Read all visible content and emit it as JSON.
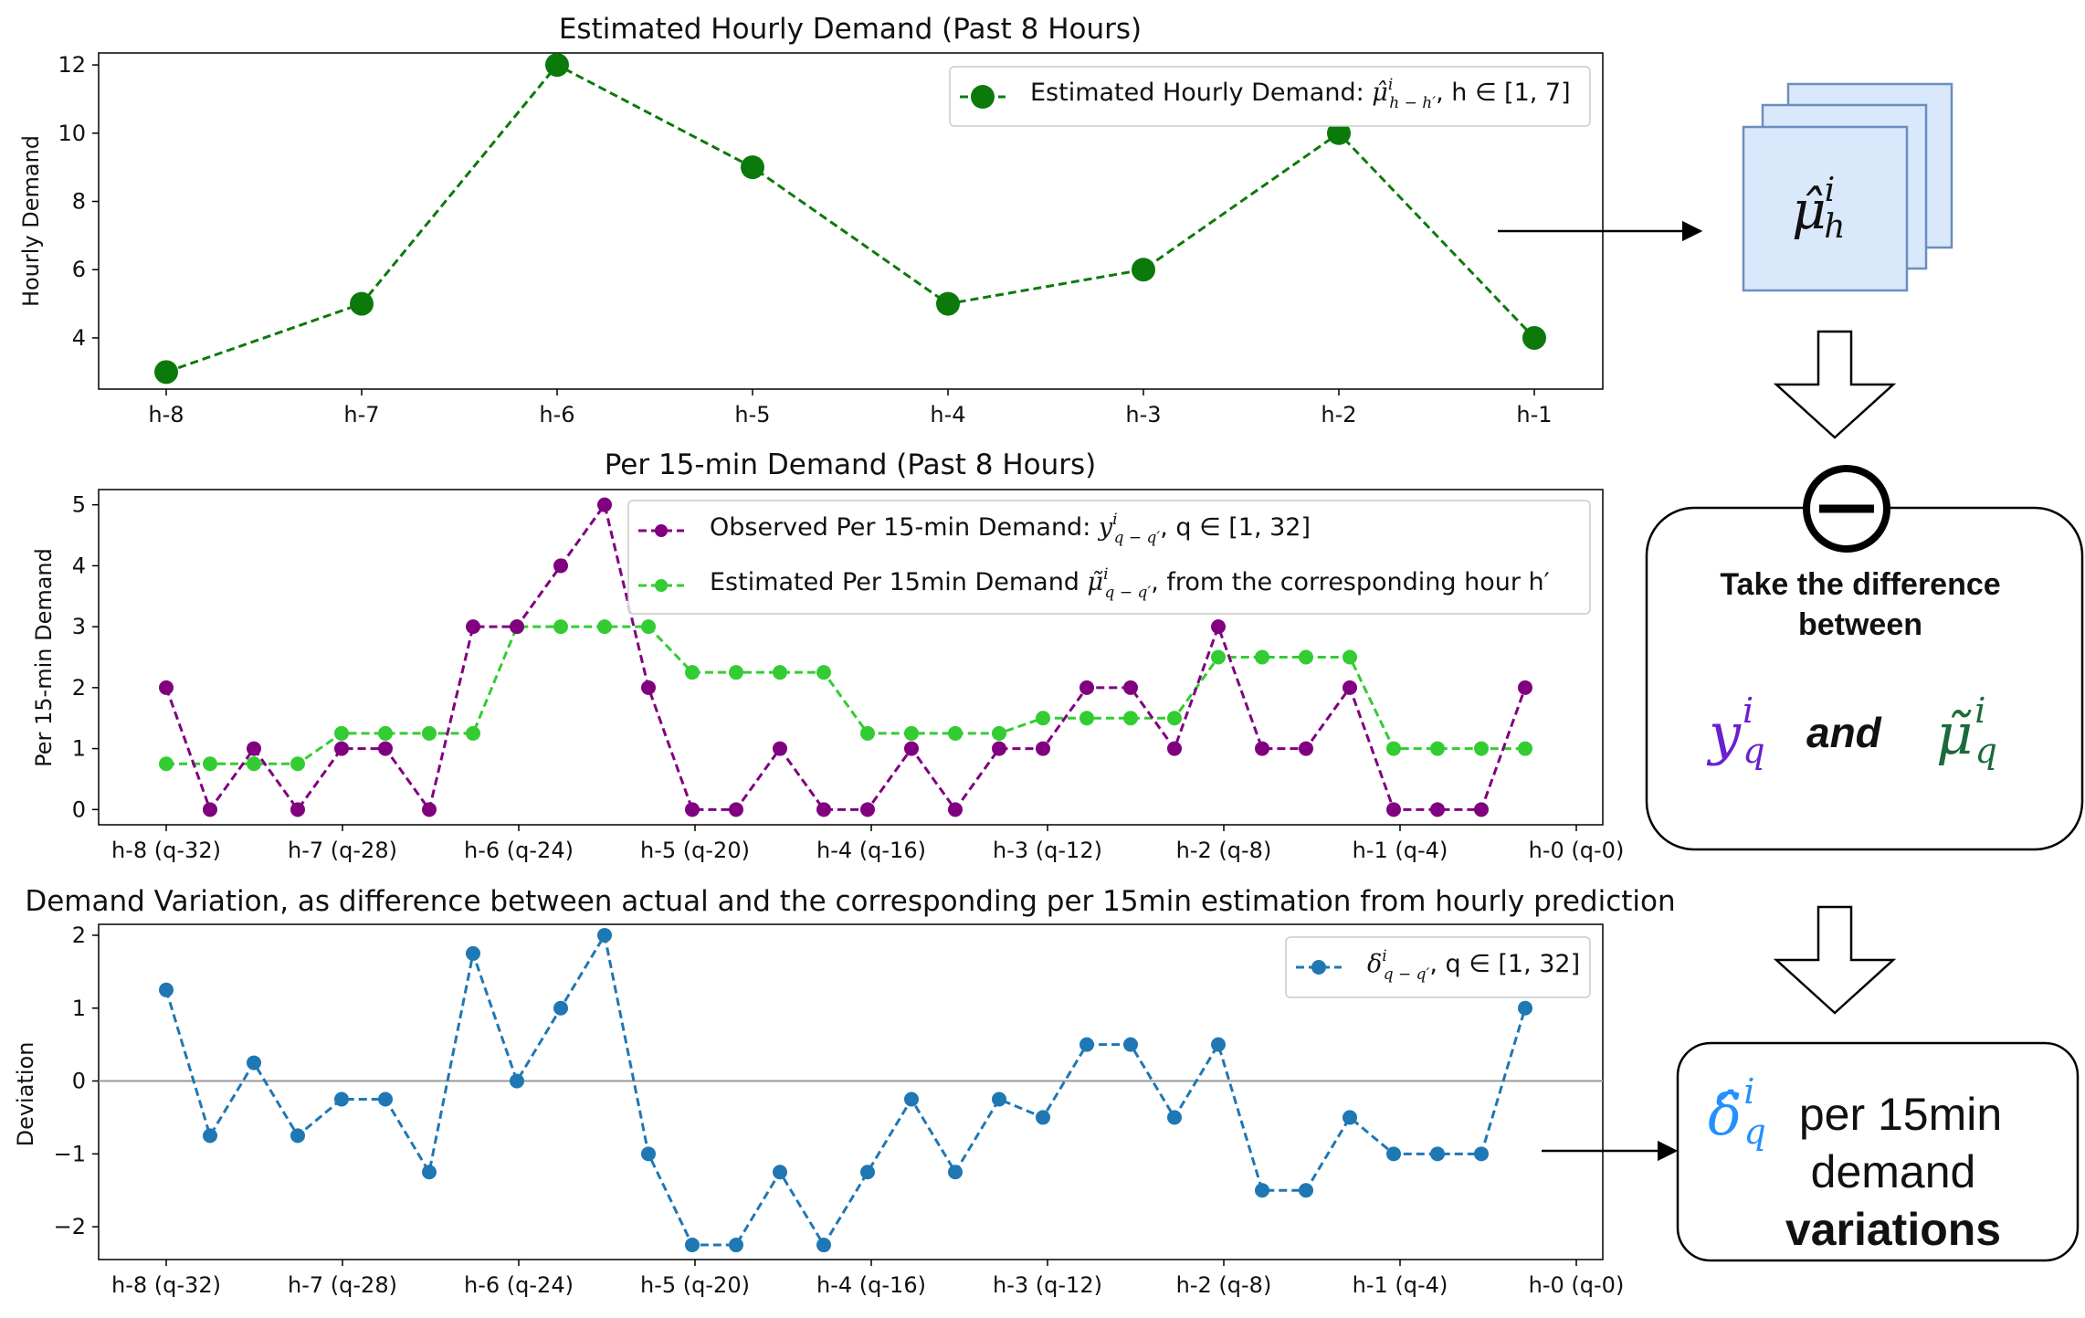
{
  "chart_data": [
    {
      "type": "line",
      "title": "Estimated Hourly Demand (Past 8 Hours)",
      "ylabel": "Hourly Demand",
      "xlabel": "",
      "categories": [
        "h-8",
        "h-7",
        "h-6",
        "h-5",
        "h-4",
        "h-3",
        "h-2",
        "h-1"
      ],
      "ylim": [
        2.5,
        12.35
      ],
      "yticks": [
        "4",
        "6",
        "8",
        "10",
        "12"
      ],
      "legend_position": "top-right",
      "series": [
        {
          "name": "Estimated Hourly Demand: μ̂ⁱ h−h′, h∈[1, 7]",
          "color": "#0b7a0b",
          "values": [
            3,
            5,
            12,
            9,
            5,
            6,
            10,
            4
          ]
        }
      ]
    },
    {
      "type": "line",
      "title": "Per 15-min Demand (Past 8 Hours)",
      "ylabel": "Per 15-min Demand",
      "xlabel": "",
      "x_tick_labels": [
        "h-8 (q-32)",
        "h-7 (q-28)",
        "h-6 (q-24)",
        "h-5 (q-20)",
        "h-4 (q-16)",
        "h-3 (q-12)",
        "h-2 (q-8)",
        "h-1 (q-4)",
        "h-0 (q-0)"
      ],
      "ylim": [
        -0.25,
        5.25
      ],
      "yticks": [
        "0",
        "1",
        "2",
        "3",
        "4",
        "5"
      ],
      "legend_position": "top-right",
      "series": [
        {
          "name": "Observed Per 15-min Demand: yⁱ q−q′, q∈[1, 32]",
          "color": "#800080",
          "values": [
            2,
            0,
            1,
            0,
            1,
            1,
            0,
            3,
            3,
            4,
            5,
            2,
            0,
            0,
            1,
            0,
            0,
            1,
            0,
            1,
            1,
            2,
            2,
            1,
            3,
            1,
            1,
            2,
            0,
            0,
            0,
            2
          ]
        },
        {
          "name": "Estimated Per 15min Demand μ̃ⁱ q−q′, from the corresponding hour h′",
          "color": "#33cc33",
          "values": [
            0.75,
            0.75,
            0.75,
            0.75,
            1.25,
            1.25,
            1.25,
            1.25,
            3,
            3,
            3,
            3,
            2.25,
            2.25,
            2.25,
            2.25,
            1.25,
            1.25,
            1.25,
            1.25,
            1.5,
            1.5,
            1.5,
            1.5,
            2.5,
            2.5,
            2.5,
            2.5,
            1,
            1,
            1,
            1
          ]
        }
      ]
    },
    {
      "type": "line",
      "title": "Demand Variation, as difference between actual and the corresponding per 15min estimation from hourly prediction",
      "ylabel": "Deviation",
      "xlabel": "",
      "x_tick_labels": [
        "h-8 (q-32)",
        "h-7 (q-28)",
        "h-6 (q-24)",
        "h-5 (q-20)",
        "h-4 (q-16)",
        "h-3 (q-12)",
        "h-2 (q-8)",
        "h-1 (q-4)",
        "h-0 (q-0)"
      ],
      "ylim": [
        -2.45,
        2.15
      ],
      "yticks": [
        "−2",
        "−1",
        "0",
        "1",
        "2"
      ],
      "legend_position": "top-right",
      "series": [
        {
          "name": "δⁱ q−q′, q∈[1, 32]",
          "color": "#1f77b4",
          "values": [
            1.25,
            -0.75,
            0.25,
            -0.75,
            -0.25,
            -0.25,
            -1.25,
            1.75,
            0,
            1,
            2,
            -1,
            -2.25,
            -2.25,
            -1.25,
            -2.25,
            -1.25,
            -0.25,
            -1.25,
            -0.25,
            -0.5,
            0.5,
            0.5,
            -0.5,
            0.5,
            -1.5,
            -1.5,
            -0.5,
            -1,
            -1,
            -1,
            1
          ]
        }
      ]
    }
  ],
  "legend_parts": {
    "p1": {
      "prefix": "Estimated Hourly Demand: ",
      "sym": "μ̂",
      "sup": "i",
      "sub": "h − h′",
      "suffix": ", h ∈ [1, 7]"
    },
    "p2a": {
      "prefix": "Observed Per 15-min Demand: ",
      "sym": "y",
      "sup": "i",
      "sub": "q − q′",
      "suffix": ", q ∈ [1, 32]"
    },
    "p2b": {
      "prefix": "Estimated Per 15min Demand ",
      "sym": "μ̃",
      "sup": "i",
      "sub": "q − q′",
      "suffix": ", from the corresponding hour h′"
    },
    "p3": {
      "prefix": "",
      "sym": "δ",
      "sup": "i",
      "sub": "q − q′",
      "suffix": ", q ∈ [1, 32]"
    }
  },
  "diagram": {
    "stack": {
      "sym": "μ̂",
      "sup": "i",
      "sub": "h"
    },
    "minus_symbol": "−",
    "diff_box": {
      "line1": "Take the difference",
      "line2": "between",
      "y_sym": "y",
      "y_sup": "i",
      "y_sub": "q",
      "and": "and",
      "mu_sym": "μ̃",
      "mu_sup": "i",
      "mu_sub": "q"
    },
    "var_box": {
      "sym": "δ̂",
      "sup": "i",
      "sub": "q",
      "line1": "per 15min",
      "line2": "demand",
      "line3": "variations"
    },
    "colors": {
      "y": "#6a1fd0",
      "mu": "#1b6b3a",
      "delta": "#2490ff",
      "stack_fill": "#dae8fc",
      "stack_stroke": "#6c8ebf"
    }
  }
}
